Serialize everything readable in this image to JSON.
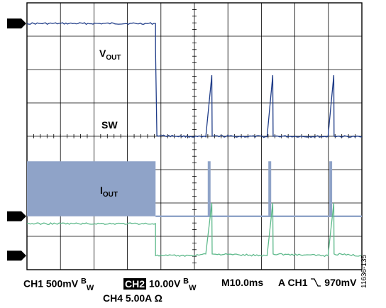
{
  "chart_data": {
    "type": "line",
    "title": "",
    "xlabel": "",
    "ylabel": "",
    "grid": true,
    "divisions": {
      "x": 10,
      "y": 8
    },
    "xlim": [
      0,
      100
    ],
    "x_unit": "ms",
    "series": [
      {
        "name": "VOUT",
        "channel": "1",
        "color": "#1f3c88",
        "ylim": [
          0,
          8
        ],
        "points": [
          [
            0,
            7.38
          ],
          [
            38.4,
            7.38
          ],
          [
            38.4,
            6.6
          ],
          [
            38.8,
            4.02
          ],
          [
            53.4,
            3.98
          ],
          [
            55.2,
            5.83
          ],
          [
            55.3,
            4.0
          ],
          [
            71.7,
            3.99
          ],
          [
            73.4,
            5.83
          ],
          [
            73.5,
            4.0
          ],
          [
            89.9,
            3.99
          ],
          [
            91.6,
            5.83
          ],
          [
            91.7,
            4.0
          ],
          [
            100,
            3.98
          ]
        ]
      },
      {
        "name": "SW",
        "channel": "2",
        "color": "#8fa3c8",
        "ylim": [
          0,
          8
        ],
        "segments": [
          {
            "kind": "burst",
            "x": [
              0,
              38.4
            ],
            "y": [
              1.6,
              3.25
            ]
          },
          {
            "kind": "level",
            "x": [
              38.4,
              100
            ],
            "y": 1.6
          },
          {
            "kind": "pulse",
            "x": 54.4,
            "y": [
              1.6,
              3.25
            ]
          },
          {
            "kind": "pulse",
            "x": 72.5,
            "y": [
              1.6,
              3.25
            ]
          },
          {
            "kind": "pulse",
            "x": 90.7,
            "y": [
              1.6,
              3.25
            ]
          }
        ]
      },
      {
        "name": "IOUT",
        "channel": "4",
        "color": "#5eb98b",
        "ylim": [
          0,
          8
        ],
        "points": [
          [
            0,
            1.38
          ],
          [
            38.4,
            1.38
          ],
          [
            38.4,
            0.42
          ],
          [
            48.7,
            0.42
          ],
          [
            53.4,
            0.47
          ],
          [
            55.2,
            2.0
          ],
          [
            55.3,
            0.47
          ],
          [
            71.7,
            0.42
          ],
          [
            73.4,
            2.0
          ],
          [
            73.5,
            0.47
          ],
          [
            89.9,
            0.42
          ],
          [
            91.6,
            2.0
          ],
          [
            91.7,
            0.47
          ],
          [
            100,
            0.42
          ]
        ]
      }
    ],
    "annotations": {
      "vout": {
        "base": "V",
        "sub": "OUT"
      },
      "sw": "SW",
      "iout": {
        "base": "I",
        "sub": "OUT"
      }
    },
    "markers": [
      {
        "label": "1",
        "level": 7.38
      },
      {
        "label": "2",
        "level": 1.6
      },
      {
        "label": "4",
        "level": 0.42
      }
    ]
  },
  "status": {
    "ch1": "CH1 500mV",
    "bw_b": "B",
    "bw_w": "W",
    "ch2_tag": "CH2",
    "ch2_scale": "10.00V",
    "timebase": "M10.0ms",
    "trig": "A CH1",
    "trig_level": "970mV",
    "ch4": "CH4  5.00A Ω"
  },
  "figure_id": "11636-135",
  "colors": {
    "grid": "#000000",
    "marker_bg": "#000000",
    "marker_fg": "#ffffff"
  }
}
